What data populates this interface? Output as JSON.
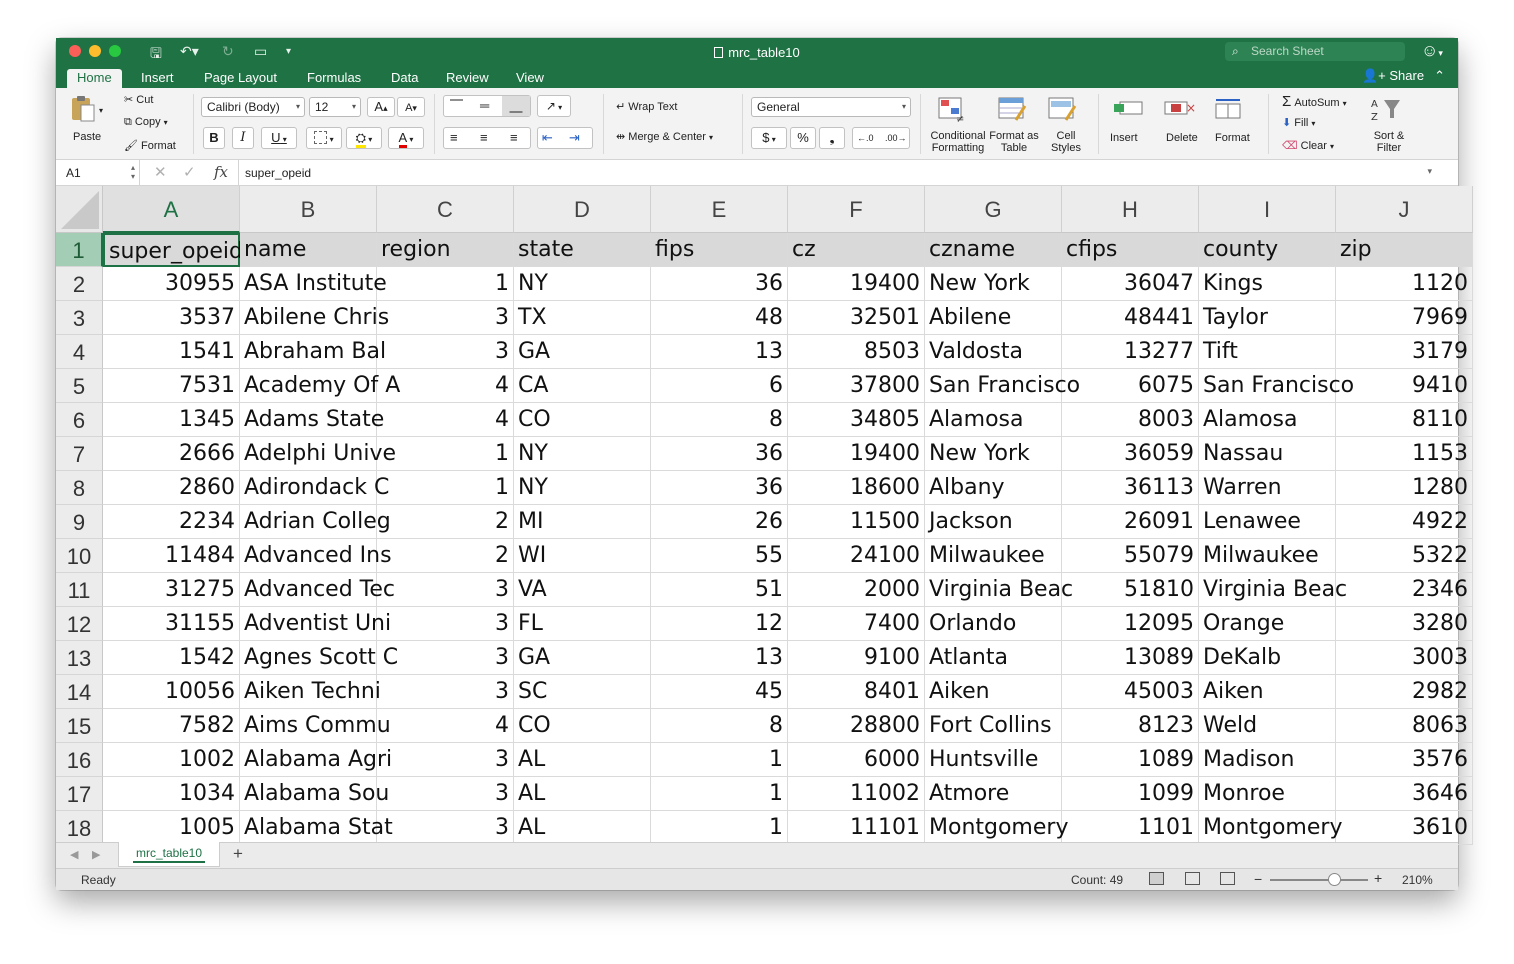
{
  "title_bar": {
    "document_title": "mrc_table10",
    "search_placeholder": "Search Sheet"
  },
  "tabs": [
    {
      "label": "Home",
      "active": true
    },
    {
      "label": "Insert"
    },
    {
      "label": "Page Layout"
    },
    {
      "label": "Formulas"
    },
    {
      "label": "Data"
    },
    {
      "label": "Review"
    },
    {
      "label": "View"
    }
  ],
  "share_label": "Share",
  "ribbon": {
    "paste": "Paste",
    "cut": "Cut",
    "copy": "Copy",
    "format_painter": "Format",
    "font_name": "Calibri (Body)",
    "font_size": "12",
    "bold": "B",
    "italic": "I",
    "underline": "U",
    "wrap_text": "Wrap Text",
    "merge_center": "Merge & Center",
    "number_format": "General",
    "currency": "$",
    "percent": "%",
    "conditional_formatting": "Conditional Formatting",
    "format_as_table": "Format as Table",
    "cell_styles": "Cell Styles",
    "insert": "Insert",
    "delete": "Delete",
    "format": "Format",
    "autosum": "AutoSum",
    "fill": "Fill",
    "clear": "Clear",
    "sort_filter": "Sort & Filter"
  },
  "formula_bar": {
    "name_box": "A1",
    "fx": "fx",
    "value": "super_opeid"
  },
  "columns": [
    "A",
    "B",
    "C",
    "D",
    "E",
    "F",
    "G",
    "H",
    "I",
    "J"
  ],
  "header_row": [
    "super_opeid",
    "name",
    "region",
    "state",
    "fips",
    "cz",
    "czname",
    "cfips",
    "county",
    "zip"
  ],
  "rows": [
    {
      "n": "2",
      "cells": [
        "30955",
        "ASA Institute",
        "1",
        "NY",
        "36",
        "19400",
        "New York",
        "36047",
        "Kings",
        "1120"
      ]
    },
    {
      "n": "3",
      "cells": [
        "3537",
        "Abilene Chris",
        "3",
        "TX",
        "48",
        "32501",
        "Abilene",
        "48441",
        "Taylor",
        "7969"
      ]
    },
    {
      "n": "4",
      "cells": [
        "1541",
        "Abraham Bal",
        "3",
        "GA",
        "13",
        "8503",
        "Valdosta",
        "13277",
        "Tift",
        "3179"
      ]
    },
    {
      "n": "5",
      "cells": [
        "7531",
        "Academy Of A",
        "4",
        "CA",
        "6",
        "37800",
        "San Francisco",
        "6075",
        "San Francisco",
        "9410"
      ]
    },
    {
      "n": "6",
      "cells": [
        "1345",
        "Adams State",
        "4",
        "CO",
        "8",
        "34805",
        "Alamosa",
        "8003",
        "Alamosa",
        "8110"
      ]
    },
    {
      "n": "7",
      "cells": [
        "2666",
        "Adelphi Unive",
        "1",
        "NY",
        "36",
        "19400",
        "New York",
        "36059",
        "Nassau",
        "1153"
      ]
    },
    {
      "n": "8",
      "cells": [
        "2860",
        "Adirondack C",
        "1",
        "NY",
        "36",
        "18600",
        "Albany",
        "36113",
        "Warren",
        "1280"
      ]
    },
    {
      "n": "9",
      "cells": [
        "2234",
        "Adrian Colleg",
        "2",
        "MI",
        "26",
        "11500",
        "Jackson",
        "26091",
        "Lenawee",
        "4922"
      ]
    },
    {
      "n": "10",
      "cells": [
        "11484",
        "Advanced Ins",
        "2",
        "WI",
        "55",
        "24100",
        "Milwaukee",
        "55079",
        "Milwaukee",
        "5322"
      ]
    },
    {
      "n": "11",
      "cells": [
        "31275",
        "Advanced Tec",
        "3",
        "VA",
        "51",
        "2000",
        "Virginia Beac",
        "51810",
        "Virginia Beac",
        "2346"
      ]
    },
    {
      "n": "12",
      "cells": [
        "31155",
        "Adventist Uni",
        "3",
        "FL",
        "12",
        "7400",
        "Orlando",
        "12095",
        "Orange",
        "3280"
      ]
    },
    {
      "n": "13",
      "cells": [
        "1542",
        "Agnes Scott C",
        "3",
        "GA",
        "13",
        "9100",
        "Atlanta",
        "13089",
        "DeKalb",
        "3003"
      ]
    },
    {
      "n": "14",
      "cells": [
        "10056",
        "Aiken Techni",
        "3",
        "SC",
        "45",
        "8401",
        "Aiken",
        "45003",
        "Aiken",
        "2982"
      ]
    },
    {
      "n": "15",
      "cells": [
        "7582",
        "Aims Commu",
        "4",
        "CO",
        "8",
        "28800",
        "Fort Collins",
        "8123",
        "Weld",
        "8063"
      ]
    },
    {
      "n": "16",
      "cells": [
        "1002",
        "Alabama Agri",
        "3",
        "AL",
        "1",
        "6000",
        "Huntsville",
        "1089",
        "Madison",
        "3576"
      ]
    },
    {
      "n": "17",
      "cells": [
        "1034",
        "Alabama Sou",
        "3",
        "AL",
        "1",
        "11002",
        "Atmore",
        "1099",
        "Monroe",
        "3646"
      ]
    },
    {
      "n": "18",
      "cells": [
        "1005",
        "Alabama Stat",
        "3",
        "AL",
        "1",
        "11101",
        "Montgomery",
        "1101",
        "Montgomery",
        "3610"
      ]
    }
  ],
  "sheet_tab": "mrc_table10",
  "status": {
    "ready": "Ready",
    "count": "Count: 49",
    "zoom": "210%"
  },
  "colors": {
    "excel_green": "#1f7244",
    "accent_green": "#1e7145"
  }
}
